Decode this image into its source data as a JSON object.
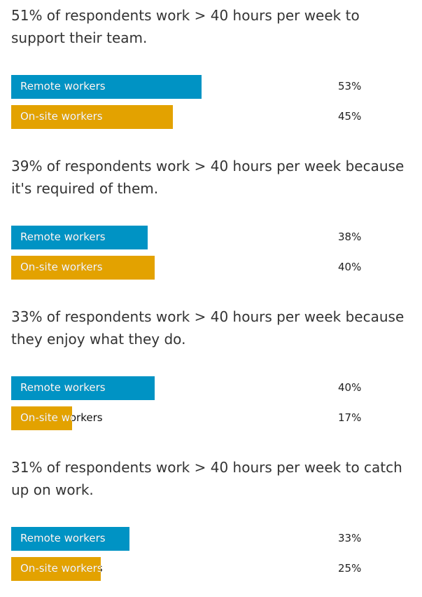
{
  "colors": {
    "remote": "#0093c4",
    "onsite": "#e3a200"
  },
  "chart_data": {
    "type": "bar",
    "orientation": "horizontal",
    "xlim": [
      0,
      100
    ],
    "unit": "%",
    "groups": [
      {
        "headline": "51% of respondents work > 40 hours per week to support their team.",
        "bars": [
          {
            "label": "Remote workers",
            "value": 53,
            "value_label": "53%",
            "color": "#0093c4"
          },
          {
            "label": "On-site workers",
            "value": 45,
            "value_label": "45%",
            "color": "#e3a200"
          }
        ]
      },
      {
        "headline": "39% of respondents work > 40 hours per week because it's required of them.",
        "bars": [
          {
            "label": "Remote workers",
            "value": 38,
            "value_label": "38%",
            "color": "#0093c4"
          },
          {
            "label": "On-site workers",
            "value": 40,
            "value_label": "40%",
            "color": "#e3a200"
          }
        ]
      },
      {
        "headline": "33% of respondents work > 40 hours per week because they enjoy what they do.",
        "bars": [
          {
            "label": "Remote workers",
            "value": 40,
            "value_label": "40%",
            "color": "#0093c4"
          },
          {
            "label": "On-site workers",
            "value": 17,
            "value_label": "17%",
            "color": "#e3a200"
          }
        ]
      },
      {
        "headline": "31% of respondents work > 40 hours per week to catch up on work.",
        "bars": [
          {
            "label": "Remote workers",
            "value": 33,
            "value_label": "33%",
            "color": "#0093c4"
          },
          {
            "label": "On-site workers",
            "value": 25,
            "value_label": "25%",
            "color": "#e3a200"
          }
        ]
      }
    ]
  }
}
